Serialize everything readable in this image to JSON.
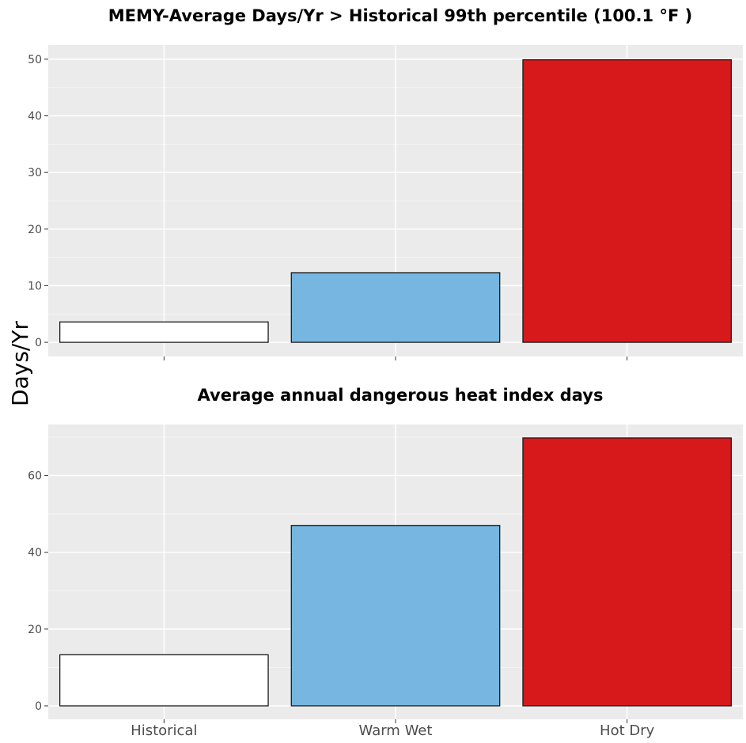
{
  "y_axis_title": "Days/Yr",
  "chart_data": [
    {
      "type": "bar",
      "title": "MEMY-Average Days/Yr > Historical 99th percentile (100.1 °F )",
      "categories": [
        "Historical",
        "Warm Wet",
        "Hot Dry"
      ],
      "values": [
        3.6,
        12.3,
        49.9
      ],
      "ylabel": "Days/Yr",
      "ylim": [
        -2.5,
        52.5
      ],
      "yticks": [
        0,
        10,
        20,
        30,
        40,
        50
      ],
      "x_tick_labels_shown": false,
      "colors": [
        "#ffffff",
        "#76b6e0",
        "#d7191c"
      ],
      "grid": true
    },
    {
      "type": "bar",
      "title": "Average annual dangerous heat index days",
      "categories": [
        "Historical",
        "Warm Wet",
        "Hot Dry"
      ],
      "values": [
        13.3,
        47.0,
        69.8
      ],
      "ylabel": "Days/Yr",
      "ylim": [
        -3.5,
        73.3
      ],
      "yticks": [
        0,
        20,
        40,
        60
      ],
      "x_tick_labels_shown": true,
      "colors": [
        "#ffffff",
        "#76b6e0",
        "#d7191c"
      ],
      "grid": true
    }
  ]
}
